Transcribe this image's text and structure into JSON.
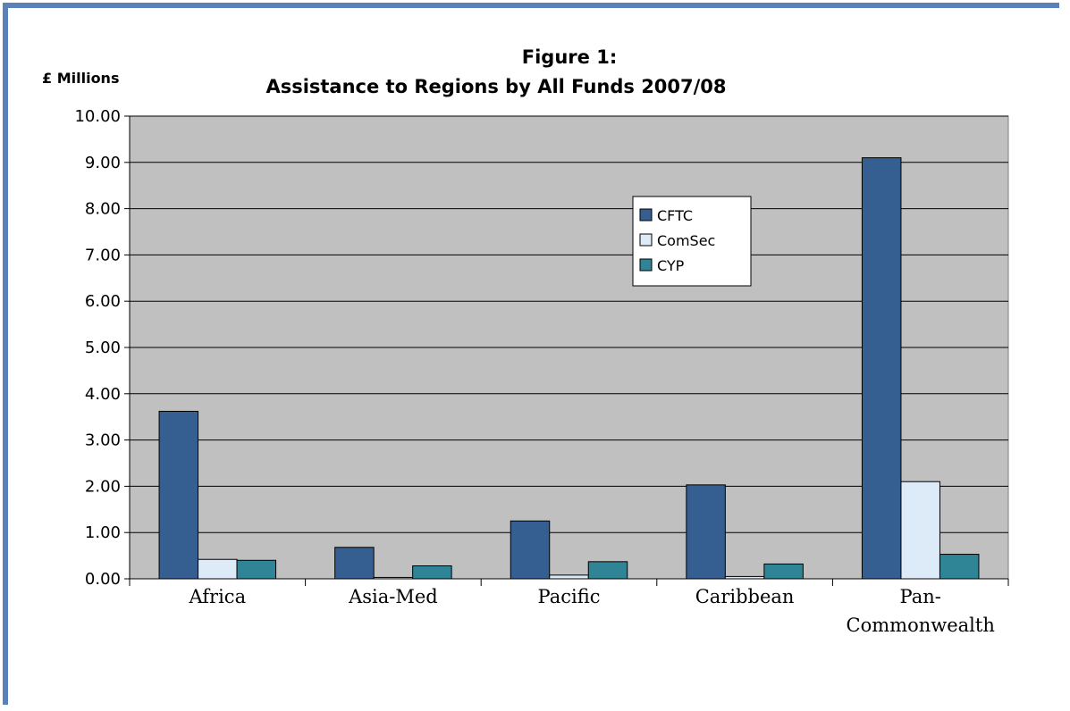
{
  "chart_data": {
    "type": "bar",
    "title_line1": "Figure 1:",
    "title_line2": "Assistance to Regions by All Funds 2007/08",
    "ylabel": "£ Millions",
    "xlabel": "",
    "ylim": [
      0,
      10
    ],
    "yticks": [
      "0.00",
      "1.00",
      "2.00",
      "3.00",
      "4.00",
      "5.00",
      "6.00",
      "7.00",
      "8.00",
      "9.00",
      "10.00"
    ],
    "categories": [
      [
        "Africa"
      ],
      [
        "Asia-Med"
      ],
      [
        "Pacific"
      ],
      [
        "Caribbean"
      ],
      [
        "Pan-",
        "Commonwealth"
      ]
    ],
    "series": [
      {
        "name": "CFTC",
        "color": "#355e91",
        "values": [
          3.62,
          0.68,
          1.25,
          2.03,
          9.1
        ]
      },
      {
        "name": "ComSec",
        "color": "#ddeaf7",
        "values": [
          0.42,
          0.03,
          0.08,
          0.05,
          2.1
        ]
      },
      {
        "name": "CYP",
        "color": "#2f8496",
        "values": [
          0.4,
          0.28,
          0.37,
          0.32,
          0.53
        ]
      }
    ],
    "grid": true,
    "legend_position": "center-right",
    "plot_background": "#c0c0c0"
  }
}
